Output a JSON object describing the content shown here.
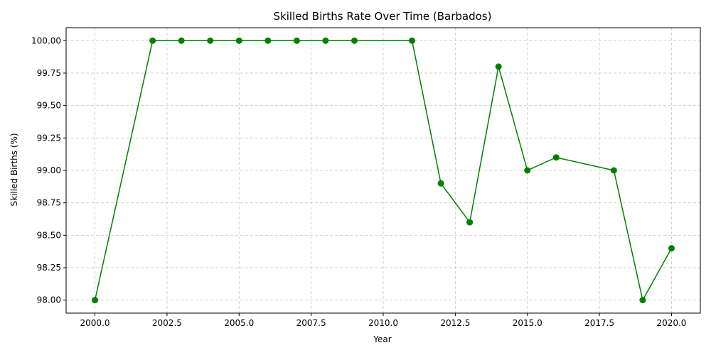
{
  "chart_data": {
    "type": "line",
    "title": "Skilled Births Rate Over Time (Barbados)",
    "xlabel": "Year",
    "ylabel": "Skilled Births (%)",
    "xlim": [
      1999.0,
      2021.0
    ],
    "ylim": [
      97.9,
      100.1
    ],
    "xticks": [
      2000.0,
      2002.5,
      2005.0,
      2007.5,
      2010.0,
      2012.5,
      2015.0,
      2017.5,
      2020.0
    ],
    "xtick_labels": [
      "2000.0",
      "2002.5",
      "2005.0",
      "2007.5",
      "2010.0",
      "2012.5",
      "2015.0",
      "2017.5",
      "2020.0"
    ],
    "yticks": [
      98.0,
      98.25,
      98.5,
      98.75,
      99.0,
      99.25,
      99.5,
      99.75,
      100.0
    ],
    "ytick_labels": [
      "98.00",
      "98.25",
      "98.50",
      "98.75",
      "99.00",
      "99.25",
      "99.50",
      "99.75",
      "100.00"
    ],
    "grid": true,
    "color": "#008000",
    "series": [
      {
        "x": [
          2000,
          2002,
          2003,
          2004,
          2005,
          2006,
          2007,
          2008,
          2009,
          2011,
          2012,
          2013,
          2014,
          2015,
          2016,
          2018,
          2019,
          2020
        ],
        "y": [
          98.0,
          100.0,
          100.0,
          100.0,
          100.0,
          100.0,
          100.0,
          100.0,
          100.0,
          100.0,
          98.9,
          98.6,
          99.8,
          99.0,
          99.1,
          99.0,
          98.0,
          98.4
        ]
      }
    ]
  }
}
